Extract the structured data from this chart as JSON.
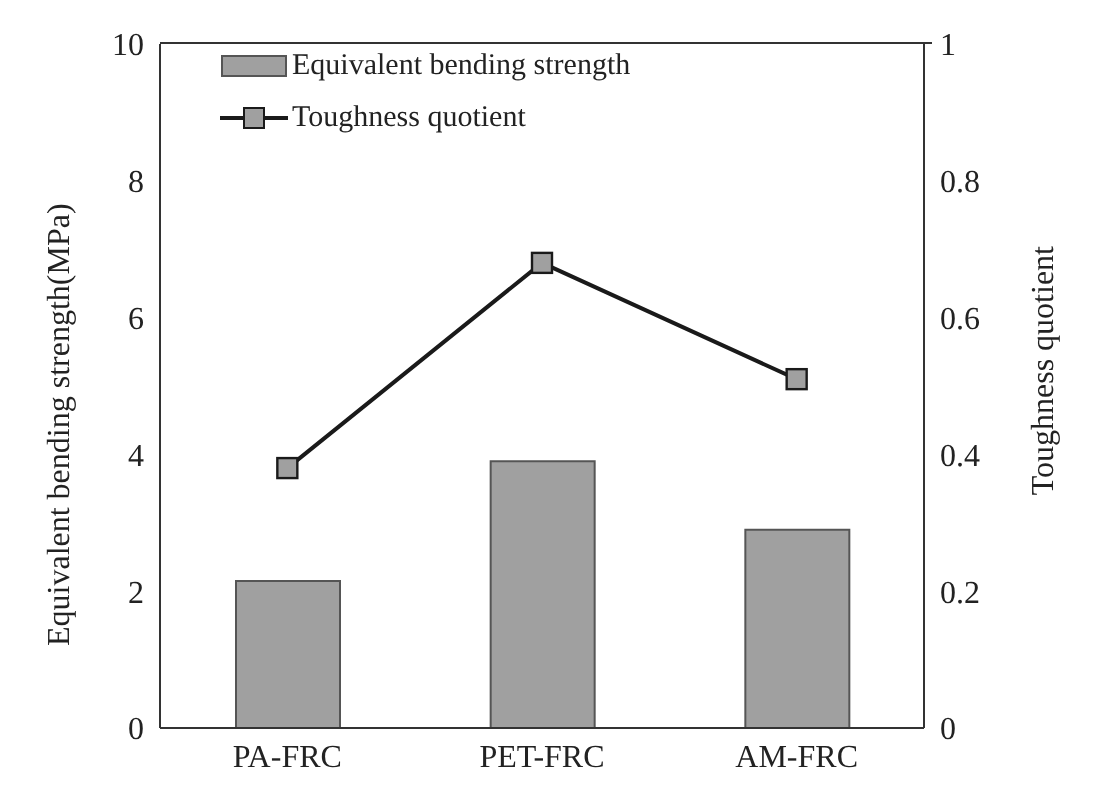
{
  "chart_data": {
    "type": "bar",
    "categories": [
      "PA-FRC",
      "PET-FRC",
      "AM-FRC"
    ],
    "series": [
      {
        "name": "Equivalent bending strength",
        "color": "#a0a0a0",
        "values": [
          2.15,
          3.9,
          2.9
        ]
      },
      {
        "name": "Toughness quotient",
        "type": "line",
        "axis": "y2",
        "color": "#1a1a1a",
        "values": [
          0.38,
          0.68,
          0.51
        ],
        "marker": "square"
      }
    ],
    "ylabel": "Equivalent bending strength(MPa)",
    "y2label": "Toughness quotient",
    "ylim": [
      0,
      10
    ],
    "yticks": [
      0,
      2,
      4,
      6,
      8,
      10
    ],
    "y2lim": [
      0,
      1
    ],
    "y2ticks": [
      0,
      0.2,
      0.4,
      0.6,
      0.8,
      1
    ],
    "legend": "top left"
  }
}
